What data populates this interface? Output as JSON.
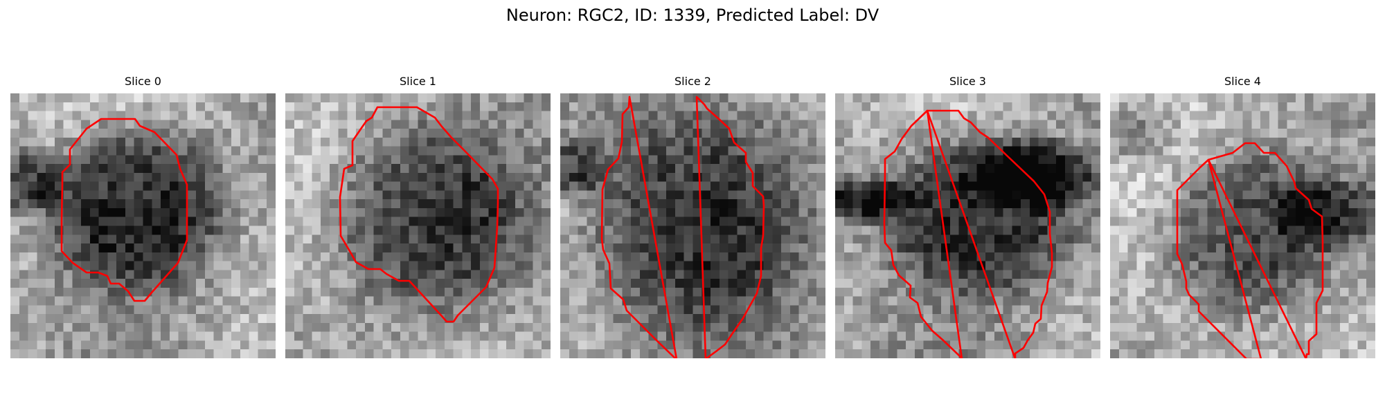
{
  "figure": {
    "title": "Neuron: RGC2, ID: 1339, Predicted Label: DV"
  },
  "slices": [
    {
      "title": "Slice 0"
    },
    {
      "title": "Slice 1"
    },
    {
      "title": "Slice 2"
    },
    {
      "title": "Slice 3"
    },
    {
      "title": "Slice 4"
    }
  ],
  "colors": {
    "contour": "#ff0000",
    "background": "#ffffff"
  }
}
